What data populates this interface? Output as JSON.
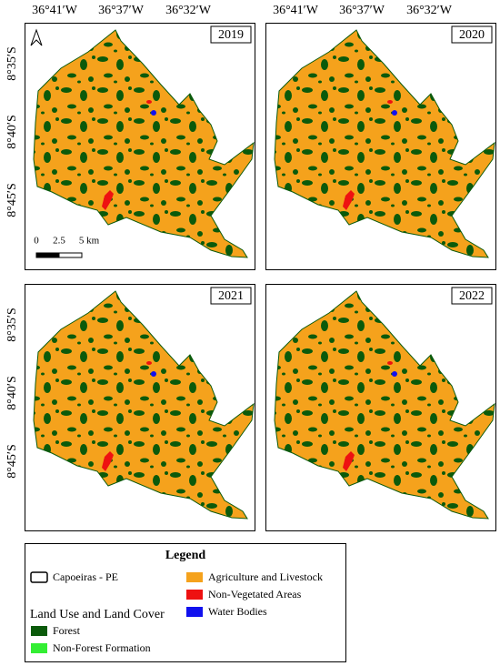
{
  "panels": [
    {
      "year": "2019"
    },
    {
      "year": "2020"
    },
    {
      "year": "2021"
    },
    {
      "year": "2022"
    }
  ],
  "longitude_labels": [
    "36°41′W",
    "36°37′W",
    "36°32′W"
  ],
  "latitude_labels": [
    "8°35′S",
    "8°40′S",
    "8°45′S"
  ],
  "scale_bar": {
    "labels": [
      "0",
      "2.5",
      "5 km"
    ]
  },
  "legend": {
    "title": "Legend",
    "boundary": "Capoeiras - PE",
    "section_title": "Land Use and Land Cover",
    "items": [
      {
        "label": "Forest",
        "color": "#0b5a0b"
      },
      {
        "label": "Non-Forest Formation",
        "color": "#33ee33"
      },
      {
        "label": "Agriculture and Livestock",
        "color": "#f5a21c"
      },
      {
        "label": "Non-Vegetated Areas",
        "color": "#ee1111"
      },
      {
        "label": "Water Bodies",
        "color": "#1111ee"
      }
    ]
  }
}
